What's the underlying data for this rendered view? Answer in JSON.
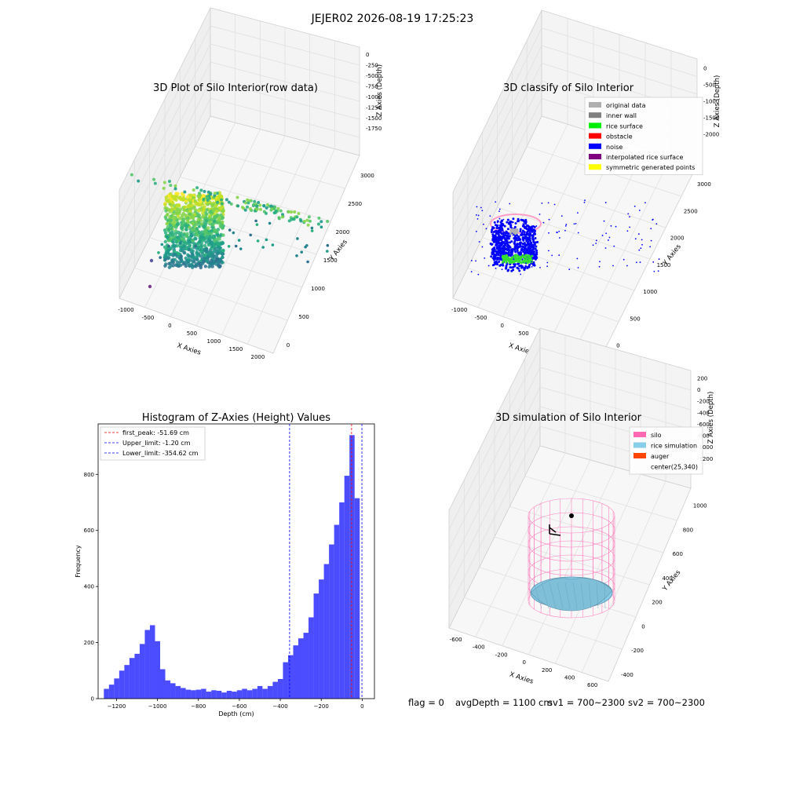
{
  "suptitle": "JEJER02 2026-08-19 17:25:23",
  "panels": {
    "raw": {
      "title": "3D Plot of Silo Interior(row data)",
      "xlabel": "X Axies",
      "ylabel": "Y Axies",
      "zlabel": "Z Axies (Depth)",
      "xticks": [
        "-1000",
        "-500",
        "0",
        "500",
        "1000",
        "1500",
        "2000"
      ],
      "yticks": [
        "0",
        "500",
        "1000",
        "1500",
        "2000",
        "2500",
        "3000"
      ],
      "zticks": [
        "0",
        "-250",
        "-500",
        "-750",
        "-1000",
        "-1250",
        "-1500",
        "-1750"
      ]
    },
    "classify": {
      "title": "3D classify of Silo Interior",
      "xlabel": "X Axies",
      "ylabel": "Y Axies",
      "zlabel": "Z Axies (Depth)",
      "xticks": [
        "-1000",
        "-500",
        "0",
        "500",
        "1000",
        "1500",
        "2000"
      ],
      "yticks": [
        "0",
        "500",
        "1000",
        "1500",
        "2000",
        "2500",
        "3000"
      ],
      "zticks": [
        "0",
        "-500",
        "-1000",
        "-1500",
        "-2000"
      ],
      "legend": [
        {
          "label": "original data",
          "color": "#b0b0b0"
        },
        {
          "label": "inner wall",
          "color": "#808080"
        },
        {
          "label": "rice surface",
          "color": "#00ee00"
        },
        {
          "label": "obstacle",
          "color": "#ff0000"
        },
        {
          "label": "noise",
          "color": "#0000ff"
        },
        {
          "label": "interpolated rice surface",
          "color": "#800080"
        },
        {
          "label": "symmetric generated points",
          "color": "#ffff00"
        }
      ]
    },
    "simulation": {
      "title": "3D simulation of Silo Interior",
      "xlabel": "X Axies",
      "ylabel": "Y Axies",
      "zlabel": "Z Axies (Depth)",
      "xticks": [
        "-600",
        "-400",
        "-200",
        "0",
        "200",
        "400",
        "600"
      ],
      "yticks": [
        "-400",
        "-200",
        "0",
        "200",
        "400",
        "600",
        "800",
        "1000"
      ],
      "zticks": [
        "200",
        "0",
        "-200",
        "-400",
        "-600",
        "-800",
        "-1000",
        "-1200"
      ],
      "legend": [
        {
          "label": "silo",
          "color": "#ff69b4"
        },
        {
          "label": "rice simulation",
          "color": "#87ceeb"
        },
        {
          "label": "auger",
          "color": "#ff4500"
        },
        {
          "label": "center(25,340)",
          "color": "none"
        }
      ]
    }
  },
  "chart_data": {
    "type": "bar",
    "title": "Histogram of Z-Axies (Height) Values",
    "xlabel": "Depth (cm)",
    "ylabel": "Frequency",
    "xlim": [
      -1290,
      60
    ],
    "ylim": [
      0,
      980
    ],
    "xticks": [
      -1200,
      -1000,
      -800,
      -600,
      -400,
      -200,
      0
    ],
    "yticks": [
      0,
      200,
      400,
      600,
      800
    ],
    "bar_color": "#0000ff",
    "bin_width": 25,
    "bin_start": -1262,
    "values": [
      35,
      50,
      72,
      100,
      120,
      145,
      160,
      195,
      245,
      262,
      205,
      105,
      65,
      55,
      45,
      38,
      32,
      30,
      32,
      35,
      25,
      30,
      28,
      22,
      28,
      25,
      30,
      35,
      30,
      35,
      45,
      35,
      45,
      60,
      70,
      130,
      155,
      190,
      215,
      235,
      290,
      375,
      425,
      480,
      550,
      620,
      700,
      795,
      940,
      715
    ],
    "vlines": [
      {
        "label": "first_peak: -51.69 cm",
        "value": -51.69,
        "color": "#ff0000"
      },
      {
        "label": "Upper_limit: -1.20 cm",
        "value": -1.2,
        "color": "#0000ff"
      },
      {
        "label": "Lower_limit: -354.62 cm",
        "value": -354.62,
        "color": "#0000ff"
      }
    ],
    "legend_position": "top-left"
  },
  "footer": {
    "flag": "flag = 0",
    "avg": "avgDepth = 1100 cm",
    "sv1": "sv1 = 700~2300",
    "sv2": "sv2 = 700~2300"
  }
}
